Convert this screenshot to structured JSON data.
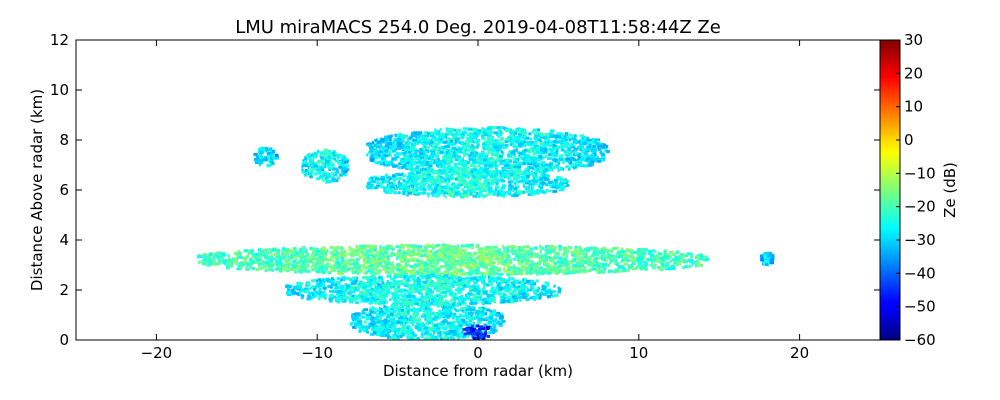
{
  "chart_data": {
    "type": "heatmap",
    "title": "LMU miraMACS 254.0 Deg. 2019-04-08T11:58:44Z  Ze",
    "xlabel": "Distance from radar (km)",
    "ylabel": "Distance Above radar  (km)",
    "xlim": [
      -25,
      25
    ],
    "ylim": [
      0,
      12
    ],
    "x_ticks": [
      -20,
      -10,
      0,
      10,
      20
    ],
    "x_tick_labels": [
      "−20",
      "−10",
      "0",
      "10",
      "20"
    ],
    "y_ticks": [
      0,
      2,
      4,
      6,
      8,
      10,
      12
    ],
    "y_tick_labels": [
      "0",
      "2",
      "4",
      "6",
      "8",
      "10",
      "12"
    ],
    "grid": false,
    "colorbar": {
      "label": "Ze (dB)",
      "colormap": "jet",
      "range": [
        -60,
        30
      ],
      "ticks": [
        30,
        20,
        10,
        0,
        -10,
        -20,
        -30,
        -40,
        -50,
        -60
      ],
      "tick_labels": [
        "30",
        "20",
        "10",
        "0",
        "−10",
        "−20",
        "−30",
        "−40",
        "−50",
        "−60"
      ]
    },
    "echo_regions": [
      {
        "x_range": [
          -14.0,
          -12.5
        ],
        "y_range": [
          6.9,
          7.7
        ],
        "ze": -28
      },
      {
        "x_range": [
          -11.0,
          -8.2
        ],
        "y_range": [
          6.3,
          7.6
        ],
        "ze": -25
      },
      {
        "x_range": [
          -7.0,
          8.0
        ],
        "y_range": [
          6.6,
          8.5
        ],
        "ze": -25
      },
      {
        "x_range": [
          -7.0,
          5.5
        ],
        "y_range": [
          5.7,
          6.8
        ],
        "ze": -24
      },
      {
        "x_range": [
          -17.5,
          14.2
        ],
        "y_range": [
          2.6,
          3.8
        ],
        "ze": -17
      },
      {
        "x_range": [
          -12.0,
          5.0
        ],
        "y_range": [
          1.4,
          2.6
        ],
        "ze": -24
      },
      {
        "x_range": [
          -8.0,
          1.5
        ],
        "y_range": [
          0.0,
          1.5
        ],
        "ze": -25
      },
      {
        "x_range": [
          -1.0,
          0.7
        ],
        "y_range": [
          0.0,
          0.6
        ],
        "ze": -45
      },
      {
        "x_range": [
          17.5,
          18.3
        ],
        "y_range": [
          3.0,
          3.5
        ],
        "ze": -28
      }
    ]
  }
}
